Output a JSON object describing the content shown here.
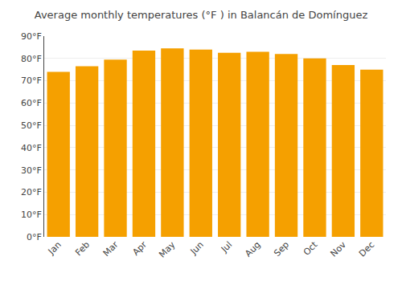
{
  "chart_data": {
    "type": "bar",
    "title": "Average monthly temperatures (°F ) in Balancán de Domínguez",
    "categories": [
      "Jan",
      "Feb",
      "Mar",
      "Apr",
      "May",
      "Jun",
      "Jul",
      "Aug",
      "Sep",
      "Oct",
      "Nov",
      "Dec"
    ],
    "values": [
      74,
      76.5,
      79.5,
      83.5,
      84.5,
      84,
      82.5,
      83,
      82,
      80,
      77,
      75
    ],
    "color": "#F5A000",
    "ylim": [
      0,
      90
    ],
    "yticks": [
      {
        "value": 0,
        "label": "0°F"
      },
      {
        "value": 10,
        "label": "10°F"
      },
      {
        "value": 20,
        "label": "20°F"
      },
      {
        "value": 30,
        "label": "30°F"
      },
      {
        "value": 40,
        "label": "40°F"
      },
      {
        "value": 50,
        "label": "50°F"
      },
      {
        "value": 60,
        "label": "60°F"
      },
      {
        "value": 70,
        "label": "70°F"
      },
      {
        "value": 80,
        "label": "80°F"
      },
      {
        "value": 90,
        "label": "90°F"
      }
    ],
    "grid": true
  }
}
